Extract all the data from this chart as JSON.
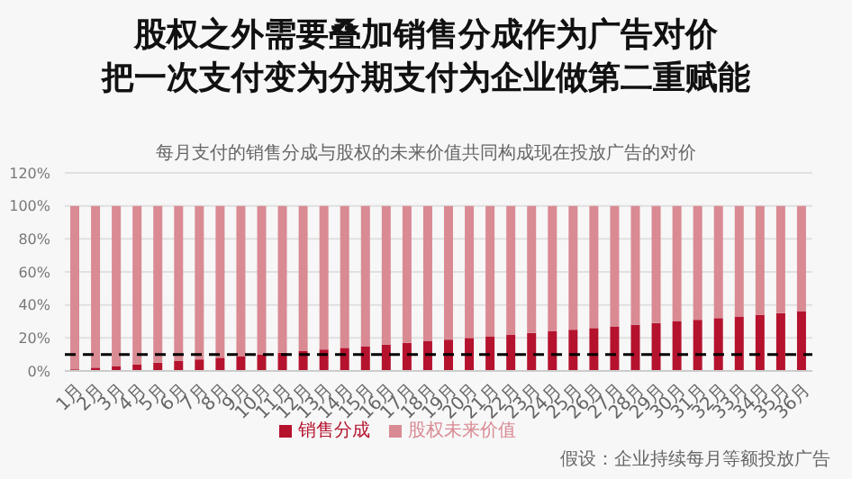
{
  "chart_data": {
    "type": "bar",
    "title": "股权之外需要叠加销售分成作为广告对价",
    "subtitle": "把一次支付变为分期支付为企业做第二重赋能",
    "categories": [
      "1月",
      "2月",
      "3月",
      "4月",
      "5月",
      "6月",
      "7月",
      "8月",
      "9月",
      "10月",
      "11月",
      "12月",
      "13月",
      "14月",
      "15月",
      "16月",
      "17月",
      "18月",
      "19月",
      "20月",
      "21月",
      "22月",
      "23月",
      "24月",
      "25月",
      "26月",
      "27月",
      "28月",
      "29月",
      "30月",
      "31月",
      "32月",
      "33月",
      "34月",
      "35月",
      "36月"
    ],
    "stacked": true,
    "series": [
      {
        "name": "销售分成",
        "color": "#b5122e",
        "values": [
          1,
          2,
          3,
          4,
          5,
          6,
          7,
          8,
          9,
          10,
          11,
          12,
          13,
          14,
          15,
          16,
          17,
          18,
          19,
          20,
          21,
          22,
          23,
          24,
          25,
          26,
          27,
          28,
          29,
          30,
          31,
          32,
          33,
          34,
          35,
          36
        ]
      },
      {
        "name": "股权未来价值",
        "color": "#d98a93",
        "values": [
          99,
          98,
          97,
          96,
          95,
          94,
          93,
          92,
          91,
          90,
          89,
          88,
          87,
          86,
          85,
          84,
          83,
          82,
          81,
          80,
          79,
          78,
          77,
          76,
          75,
          74,
          73,
          72,
          71,
          70,
          69,
          68,
          67,
          66,
          65,
          64
        ]
      }
    ],
    "ylim": [
      0,
      120
    ],
    "yticks": [
      {
        "value": 0,
        "label": "0%"
      },
      {
        "value": 20,
        "label": "20%"
      },
      {
        "value": 40,
        "label": "40%"
      },
      {
        "value": 60,
        "label": "60%"
      },
      {
        "value": 80,
        "label": "80%"
      },
      {
        "value": 100,
        "label": "100%"
      },
      {
        "value": 120,
        "label": "120%"
      }
    ],
    "grid": "y",
    "legend": "bottom",
    "ref_lines": [
      {
        "axis": "y",
        "value": 10,
        "color": "#000000",
        "line_style": "dashed"
      }
    ],
    "annotations": [
      "每月支付的销售分成与股权的未来价值共同构成现在投放广告的对价",
      "假设：企业持续每月等额投放广告"
    ]
  }
}
